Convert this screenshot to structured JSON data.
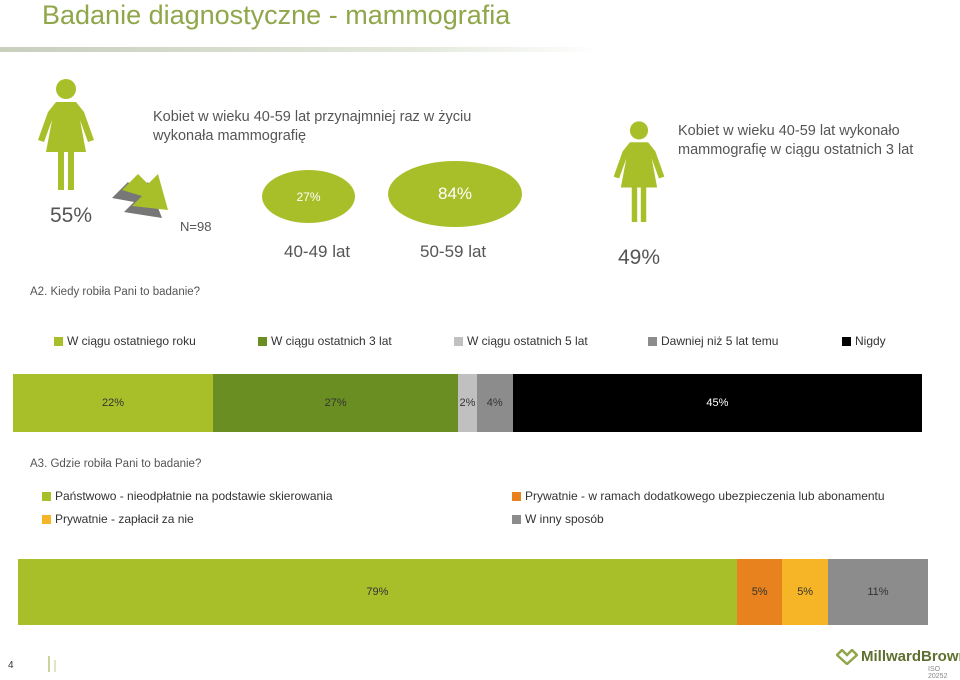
{
  "title": "Badanie diagnostyczne - mammografia",
  "left_panel": {
    "text": "Kobiet w wieku 40-59 lat przynajmniej raz w życiu wykonała mammografię",
    "pct": "55%",
    "n": "N=98",
    "ellipse1_pct": "27%",
    "ellipse2_pct": "84%",
    "age1": "40-49 lat",
    "age2": "50-59 lat"
  },
  "right_panel": {
    "text": "Kobiet  w wieku 40-59 lat wykonało mammografię w ciągu ostatnich 3 lat",
    "pct": "49%"
  },
  "colors": {
    "lime": "#a9bf2a",
    "dark_green": "#6b8e23",
    "light_gray": "#c0c0c0",
    "gray": "#8c8c8c",
    "black": "#000000",
    "orange": "#e8821e",
    "yellow": "#f5b526"
  },
  "chart_data": [
    {
      "type": "bar",
      "title": "A2. Kiedy robiła Pani to badanie?",
      "orientation": "horizontal-stacked",
      "series": [
        {
          "name": "W ciągu ostatniego roku",
          "value": 22,
          "label": "22%",
          "color": "#a9bf2a"
        },
        {
          "name": "W ciągu ostatnich 3 lat",
          "value": 27,
          "label": "27%",
          "color": "#6b8e23"
        },
        {
          "name": "W ciągu ostatnich 5 lat",
          "value": 2,
          "label": "2%",
          "color": "#c0c0c0"
        },
        {
          "name": "Dawniej niż 5 lat temu",
          "value": 4,
          "label": "4%",
          "color": "#8c8c8c"
        },
        {
          "name": "Nigdy",
          "value": 45,
          "label": "45%",
          "color": "#000000"
        }
      ],
      "legend": "top"
    },
    {
      "type": "bar",
      "title": "A3. Gdzie robiła Pani to badanie?",
      "orientation": "horizontal-stacked",
      "series": [
        {
          "name": "Państwowo - nieodpłatnie na podstawie skierowania",
          "value": 79,
          "label": "79%",
          "color": "#a9bf2a"
        },
        {
          "name": "Prywatnie - w ramach dodatkowego ubezpieczenia lub abonamentu",
          "value": 5,
          "label": "5%",
          "color": "#e8821e"
        },
        {
          "name": "Prywatnie - zapłacił za nie",
          "value": 5,
          "label": "5%",
          "color": "#f5b526"
        },
        {
          "name": "W inny sposób",
          "value": 11,
          "label": "11%",
          "color": "#8c8c8c"
        }
      ],
      "legend": "top"
    }
  ],
  "footer": {
    "page_num": "4",
    "logo": "MillwardBrown",
    "iso": "ISO 20252"
  }
}
